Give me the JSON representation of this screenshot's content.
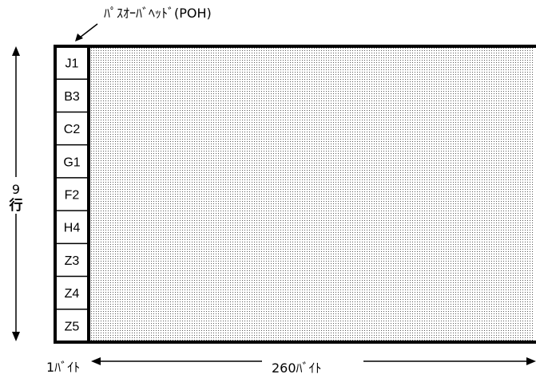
{
  "poh_label": "ﾊﾟｽｵｰﾊﾞﾍｯﾄﾞ(POH)",
  "rows_count": "9",
  "rows_unit": "行",
  "poh_width_label": "1ﾊﾞｲﾄ",
  "payload_width_label": "260ﾊﾞｲﾄ",
  "poh_bytes": [
    "J1",
    "B3",
    "C2",
    "G1",
    "F2",
    "H4",
    "Z3",
    "Z4",
    "Z5"
  ],
  "colors": {
    "line": "#000000",
    "fill": "#ffffff",
    "dot": "#555555"
  }
}
